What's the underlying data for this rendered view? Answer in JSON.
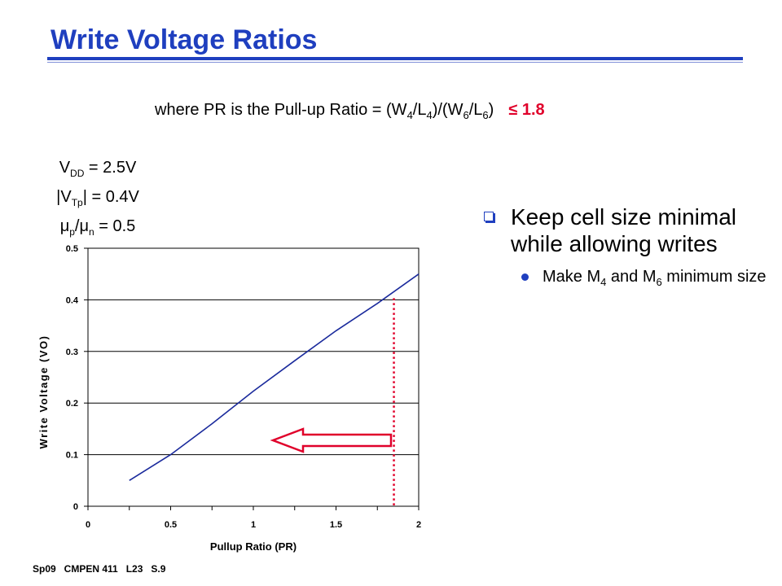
{
  "slide": {
    "title": "Write Voltage Ratios",
    "formula": {
      "prefix": "where PR is the Pull-up Ratio = (W",
      "sub_w4": "4",
      "slash1": "/L",
      "sub_l4": "4",
      "mid": ")/(W",
      "sub_w6": "6",
      "slash2": "/L",
      "sub_l6": "6",
      "close": ")",
      "bound": "≤ 1.8"
    },
    "params": {
      "vdd_v": "V",
      "vdd_sub": "DD",
      "vdd_val": " = 2.5V",
      "vtp_open": "|V",
      "vtp_sub": "Tp",
      "vtp_val": "| = 0.4V",
      "mu_p": "μ",
      "mu_p_sub": "p",
      "mu_slash": "/μ",
      "mu_n_sub": "n",
      "mu_val": " = 0.5"
    },
    "bullets": {
      "main": "Keep cell size minimal while allowing writes",
      "sub_pre": "Make M",
      "sub_m4": "4",
      "sub_mid": " and M",
      "sub_m6": "6",
      "sub_post": " minimum size"
    },
    "footer": "Sp09   CMPEN 411   L23   S.9"
  },
  "colors": {
    "title": "#1f3fbf",
    "bound": "#e0002a",
    "curve": "#1a2a9c",
    "marker": "#e0002a"
  },
  "chart_data": {
    "type": "line",
    "xlabel": "Pullup Ratio (PR)",
    "ylabel": "Write Voltage (VO)",
    "xlim": [
      0,
      2
    ],
    "ylim": [
      0,
      0.5
    ],
    "x_ticks": [
      "0",
      "0.5",
      "1",
      "1.5",
      "2"
    ],
    "y_ticks": [
      "0",
      "0.1",
      "0.2",
      "0.3",
      "0.4",
      "0.5"
    ],
    "grid": "horizontal",
    "series": [
      {
        "x": [
          0.25,
          0.5,
          0.75,
          1.0,
          1.25,
          1.5,
          1.75,
          2.0
        ],
        "values": [
          0.05,
          0.1,
          0.16,
          0.223,
          0.282,
          0.34,
          0.393,
          0.45
        ]
      }
    ],
    "marker_x": 1.85,
    "arrow": "pointing left toward smaller PR"
  }
}
